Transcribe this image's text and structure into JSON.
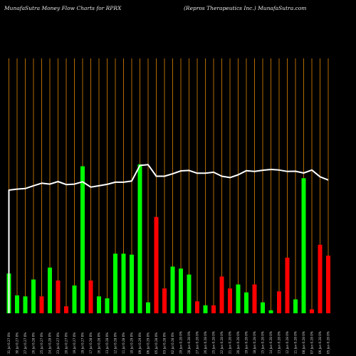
{
  "header": {
    "left": "MunafaSutra  Money Flow  Charts for RPRX",
    "right": "(Repros Therapeutics Inc.) MunafaSutra.com"
  },
  "chart_data": {
    "type": "bar",
    "title": "MunafaSutra  Money Flow  Charts for RPRX",
    "subtitle": "(Repros Therapeutics Inc.) MunafaSutra.com",
    "xlabel": "",
    "ylabel": "",
    "ylim": [
      0,
      100
    ],
    "grid": true,
    "colors": {
      "up": "#00ff00",
      "down": "#ff0000",
      "line": "#ffffff",
      "grid": "#b26a00",
      "background": "#000000"
    },
    "categories": [
      "Tue 31 Jul",
      "Mon 30 Jul",
      "Fri 27 Jul",
      "Thu 26 Jul",
      "Wed 25 Jul",
      "Tue 24 Jul",
      "Mon 23 Jul",
      "Fri 20 Jul",
      "Thu 19 Jul",
      "Wed 18 Jul",
      "Tue 17 Jul",
      "Mon 16 Jul",
      "Fri 13 Jul",
      "Thu 12 Jul",
      "Wed 11 Jul",
      "Tue 10 Jul",
      "Mon 09 Jul",
      "Fri 06 Jul",
      "Thu 05 Jul",
      "Tue 03 Jul",
      "Mon 02 Jul",
      "Fri 29 Jun",
      "Thu 28 Jun",
      "Wed 27 Jun",
      "Tue 26 Jun",
      "Mon 25 Jun",
      "Fri 22 Jun",
      "Thu 21 Jun",
      "Wed 20 Jun",
      "Tue 19 Jun",
      "Mon 18 Jun",
      "Fri 15 Jun",
      "Thu 14 Jun",
      "Wed 13 Jun",
      "Tue 12 Jun",
      "Mon 11 Jun",
      "Fri 08 Jun",
      "Thu 07 Jun",
      "Wed 06 Jun",
      "Tue 05 Jun"
    ],
    "x_tick_labels": [
      "31 Jul 0.27 0%",
      "30 Jul 0.27 0%",
      "27 Jul 0.27 0%",
      "26 Jul 0.28 0%",
      "25 Jul 0.27 0%",
      "24 Jul 0.28 0%",
      "23 Jul 0.27 0%",
      "20 Jul 0.27 0%",
      "19 Jul 0.27 0%",
      "18 Jul 0.27 0%",
      "17 Jul 0.28 0%",
      "16 Jul 0.28 0%",
      "13 Jul 0.28 0%",
      "12 Jul 0.28 0%",
      "11 Jul 0.28 0%",
      "10 Jul 0.29 0%",
      "09 Jul 0.29 0%",
      "06 Jul 0.29 0%",
      "05 Jul 0.28 0%",
      "03 Jul 0.28 0%",
      "02 Jul 0.28 0%",
      "29 Jun 0.28 0%",
      "28 Jun 0.28 0%",
      "27 Jun 0.28 0%",
      "26 Jun 0.28 0%",
      "25 Jun 0.28 0%",
      "22 Jun 0.28 0%",
      "21 Jun 0.28 0%",
      "20 Jun 0.28 0%",
      "19 Jun 0.28 0%",
      "18 Jun 0.28 0%",
      "15 Jun 0.28 0%",
      "14 Jun 0.28 0%",
      "13 Jun 0.28 0%",
      "12 Jun 0.28 0%",
      "11 Jun 0.28 0%",
      "08 Jun 0.28 0%",
      "07 Jun 0.28 0%",
      "06 Jun 0.28 0%",
      "05 Jun 0.28 0%"
    ],
    "series": [
      {
        "kind": "bar",
        "values": [
          20,
          9,
          8.5,
          17,
          8.5,
          23,
          16.5,
          3.5,
          14,
          74,
          16.5,
          8.5,
          7.5,
          30,
          30,
          29.5,
          75,
          5.5,
          48.5,
          12.5,
          23.5,
          22.5,
          19.5,
          6,
          4,
          4,
          18.5,
          12.5,
          14.5,
          10.5,
          14.5,
          5.5,
          1.5,
          11,
          28,
          7,
          68,
          2,
          34.5,
          29
        ],
        "direction": [
          "up",
          "up",
          "up",
          "up",
          "down",
          "up",
          "down",
          "down",
          "up",
          "up",
          "down",
          "up",
          "up",
          "up",
          "up",
          "up",
          "up",
          "up",
          "down",
          "down",
          "up",
          "up",
          "up",
          "down",
          "up",
          "down",
          "down",
          "down",
          "up",
          "up",
          "down",
          "up",
          "up",
          "down",
          "down",
          "up",
          "up",
          "down",
          "down",
          "down"
        ]
      },
      {
        "kind": "line",
        "values": [
          62,
          62.5,
          62.8,
          64.2,
          65.5,
          65,
          66.3,
          64.8,
          65,
          66.2,
          63.5,
          64.2,
          64.9,
          66,
          66,
          66.6,
          74.4,
          74.8,
          69,
          69,
          70.2,
          71.7,
          71.9,
          70.5,
          70.5,
          71,
          69,
          68.3,
          69.7,
          71.8,
          71.4,
          72,
          72.4,
          72.1,
          71.4,
          71.5,
          70.6,
          72.1,
          68.7,
          67.1
        ]
      }
    ]
  }
}
